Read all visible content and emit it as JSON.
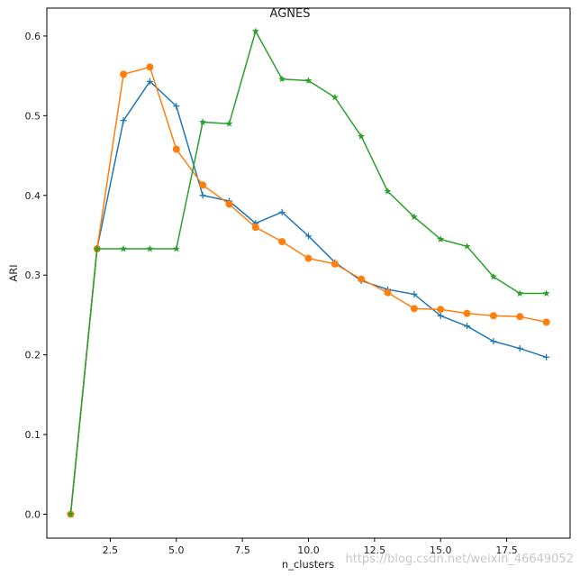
{
  "chart_data": {
    "type": "line",
    "title": "AGNES",
    "xlabel": "n_clusters",
    "ylabel": "ARI",
    "xlim": [
      0.1,
      19.9
    ],
    "ylim": [
      -0.03,
      0.635
    ],
    "xticks": [
      2.5,
      5.0,
      7.5,
      10.0,
      12.5,
      15.0,
      17.5
    ],
    "xtick_labels": [
      "2.5",
      "5.0",
      "7.5",
      "10.0",
      "12.5",
      "15.0",
      "17.5"
    ],
    "yticks": [
      0.0,
      0.1,
      0.2,
      0.3,
      0.4,
      0.5,
      0.6
    ],
    "ytick_labels": [
      "0.0",
      "0.1",
      "0.2",
      "0.3",
      "0.4",
      "0.5",
      "0.6"
    ],
    "grid": false,
    "legend": false,
    "x": [
      1,
      2,
      3,
      4,
      5,
      6,
      7,
      8,
      9,
      10,
      11,
      12,
      13,
      14,
      15,
      16,
      17,
      18,
      19
    ],
    "series": [
      {
        "color": "#1f77b4",
        "marker": "plus",
        "values": [
          0.0,
          0.333,
          0.494,
          0.543,
          0.512,
          0.4,
          0.393,
          0.365,
          0.379,
          0.349,
          0.316,
          0.293,
          0.282,
          0.276,
          0.249,
          0.236,
          0.217,
          0.208,
          0.197
        ]
      },
      {
        "color": "#ff7f0e",
        "marker": "circle",
        "values": [
          0.0,
          0.333,
          0.552,
          0.561,
          0.458,
          0.413,
          0.389,
          0.36,
          0.342,
          0.321,
          0.314,
          0.295,
          0.278,
          0.258,
          0.257,
          0.252,
          0.249,
          0.248,
          0.241
        ]
      },
      {
        "color": "#2ca02c",
        "marker": "star",
        "values": [
          0.0,
          0.333,
          0.333,
          0.333,
          0.333,
          0.492,
          0.49,
          0.606,
          0.546,
          0.544,
          0.523,
          0.474,
          0.405,
          0.373,
          0.345,
          0.336,
          0.298,
          0.277,
          0.277
        ]
      }
    ]
  },
  "watermark": "https://blog.csdn.net/weixin_46649052"
}
